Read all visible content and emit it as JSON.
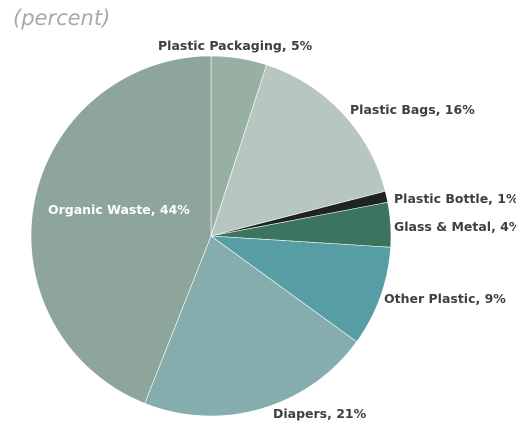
{
  "chart_data": {
    "type": "pie",
    "unit_label": "(percent)",
    "slices": [
      {
        "label": "Plastic Packaging",
        "value": 5,
        "display": "Plastic Packaging, 5%",
        "color": "#98b0a2"
      },
      {
        "label": "Plastic Bags",
        "value": 16,
        "display": "Plastic Bags, 16%",
        "color": "#b8c6c1"
      },
      {
        "label": "Plastic Bottle",
        "value": 1,
        "display": "Plastic Bottle, 1%",
        "color": "#1f2421"
      },
      {
        "label": "Glass & Metal",
        "value": 4,
        "display": "Glass & Metal, 4%",
        "color": "#3b7560"
      },
      {
        "label": "Other Plastic",
        "value": 9,
        "display": "Other Plastic, 9%",
        "color": "#579da4"
      },
      {
        "label": "Diapers",
        "value": 21,
        "display": "Diapers, 21%",
        "color": "#85adae"
      },
      {
        "label": "Organic Waste",
        "value": 44,
        "display": "Organic Waste, 44%",
        "color": "#8da59a"
      }
    ]
  }
}
